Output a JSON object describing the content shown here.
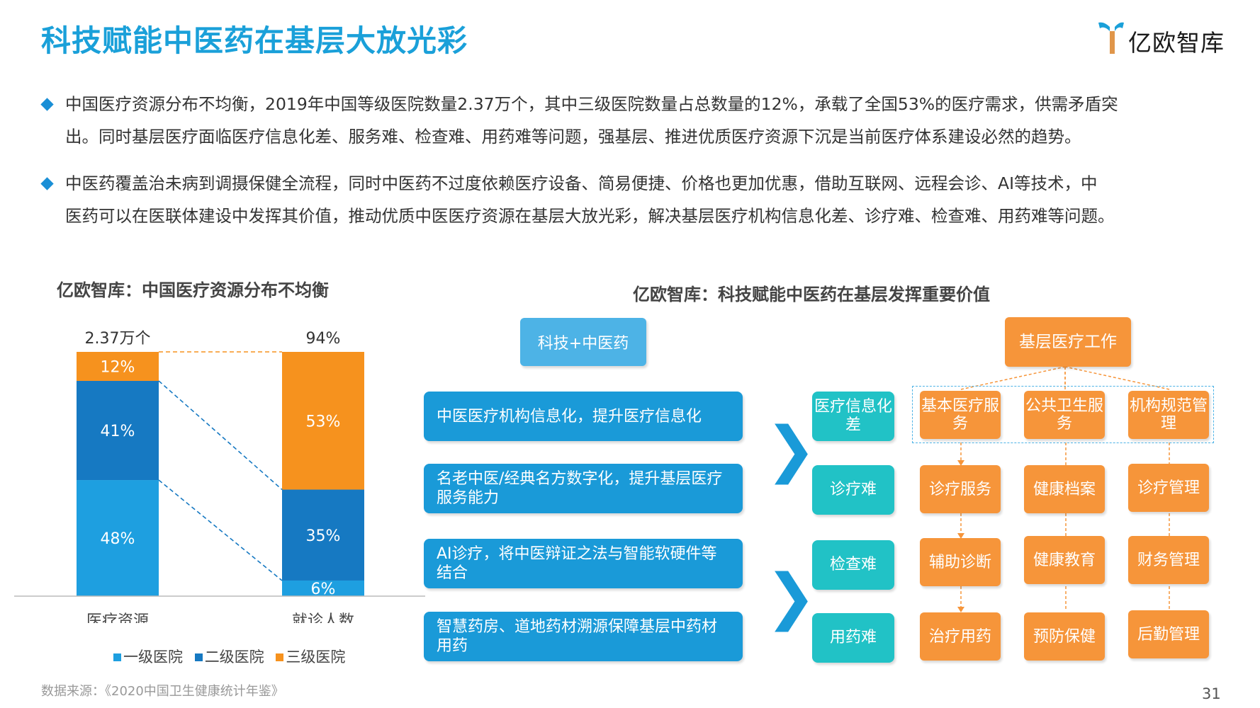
{
  "header": {
    "title": "科技赋能中医药在基层大放光彩",
    "logo_text": "亿欧智库"
  },
  "bullets": [
    {
      "line1": "中国医疗资源分布不均衡，2019年中国等级医院数量2.37万个，其中三级医院数量占总数量的12%，承载了全国53%的医疗需求，供需矛盾突",
      "line2": "出。同时基层医疗面临医疗信息化差、服务难、检查难、用药难等问题，强基层、推进优质医疗资源下沉是当前医疗体系建设必然的趋势。"
    },
    {
      "line1": "中医药覆盖治未病到调摄保健全流程，同时中医药不过度依赖医疗设备、简易便捷、价格也更加优惠，借助互联网、远程会诊、AI等技术，中",
      "line2": "医药可以在医联体建设中发挥其价值，推动优质中医医疗资源在基层大放光彩，解决基层医疗机构信息化差、诊疗难、检查难、用药难等问题。"
    }
  ],
  "left_section": {
    "title": "亿欧智库：中国医疗资源分布不均衡",
    "source": "数据来源：《2020中国卫生健康统计年鉴》"
  },
  "chart_data": {
    "type": "bar",
    "stacked": true,
    "percent": true,
    "categories": [
      "医疗资源",
      "就诊人数"
    ],
    "top_labels": [
      "2.37万个",
      "94%"
    ],
    "series": [
      {
        "name": "一级医院",
        "values": [
          48,
          6
        ],
        "labels": [
          "48%",
          "6%"
        ],
        "color": "#1e9fe0"
      },
      {
        "name": "二级医院",
        "values": [
          41,
          35
        ],
        "labels": [
          "41%",
          "35%"
        ],
        "color": "#1679c2"
      },
      {
        "name": "三级医院",
        "values": [
          12,
          53
        ],
        "labels": [
          "12%",
          "53%"
        ],
        "color": "#f6921e"
      }
    ],
    "legend_position": "bottom",
    "grid": false
  },
  "right_section": {
    "title": "亿欧智库：科技赋能中医药在基层发挥重要价值",
    "tech_head": "科技+中医药",
    "tech_rows": [
      "中医医疗机构信息化，提升医疗信息化",
      "名老中医/经典名方数字化，提升基层医疗服务能力",
      "AI诊疗，将中医辩证之法与智能软硬件等结合",
      "智慧药房、道地药材溯源保障基层中药材用药"
    ],
    "chevrons": [
      "❯",
      "❯"
    ],
    "problems": [
      "医疗信息化差",
      "诊疗难",
      "检查难",
      "用药难"
    ],
    "work_head": "基层医疗工作",
    "work_cols": [
      {
        "head": "基本医疗服务",
        "items": [
          "诊疗服务",
          "辅助诊断",
          "治疗用药"
        ]
      },
      {
        "head": "公共卫生服务",
        "items": [
          "健康档案",
          "健康教育",
          "预防保健"
        ]
      },
      {
        "head": "机构规范管理",
        "items": [
          "诊疗管理",
          "财务管理",
          "后勤管理"
        ]
      }
    ]
  },
  "page_number": "31",
  "colors": {
    "title_blue": "#1aa0d9",
    "tech_blue": "#1a9ad8",
    "teal": "#21c2c6",
    "orange": "#f6953a"
  }
}
